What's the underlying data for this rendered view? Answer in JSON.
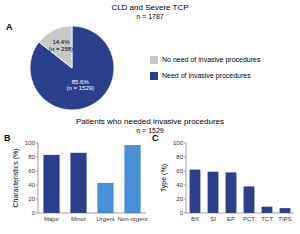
{
  "chart_data": [
    {
      "type": "pie",
      "title": "CLD and Severe TCP",
      "subtitle": "n = 1787",
      "categories": [
        "Need of invasive procedures",
        "No need of invasive procedures"
      ],
      "values": [
        85.6,
        14.4
      ],
      "value_labels": [
        "85.6%\n(n = 1529)",
        "14.4%\n(n = 258)"
      ],
      "data_labels": true,
      "colors": [
        "#2B3F8C",
        "#C8C8C8"
      ],
      "legend": "right",
      "annotations": [
        "A"
      ]
    },
    {
      "type": "bar",
      "title": "Patients who needed invasive procedures",
      "subtitle": "n = 1529",
      "categories": [
        "Major",
        "Minor",
        "Urgent",
        "Non-urgent"
      ],
      "values": [
        83,
        86,
        43,
        97
      ],
      "colors": [
        "#2B3F8C",
        "#2B3F8C",
        "#4A90D9",
        "#4A90D9"
      ],
      "y_label": "Characteristics (%)",
      "ylim": [
        0,
        100
      ],
      "yticks": [
        0,
        20,
        40,
        60,
        80,
        100
      ],
      "annotations": [
        "B"
      ]
    },
    {
      "type": "bar",
      "categories": [
        "BX",
        "SI",
        "EP",
        "PCT",
        "TCT",
        "TIPS"
      ],
      "values": [
        62,
        59,
        58,
        38,
        9,
        7
      ],
      "colors": [
        "#2B3F8C",
        "#2B3F8C",
        "#2B3F8C",
        "#2B3F8C",
        "#2B3F8C",
        "#2B3F8C"
      ],
      "y_label": "Type (%)",
      "ylim": [
        0,
        100
      ],
      "yticks": [
        0,
        20,
        40,
        60,
        80,
        100
      ],
      "annotations": [
        "C"
      ]
    }
  ]
}
